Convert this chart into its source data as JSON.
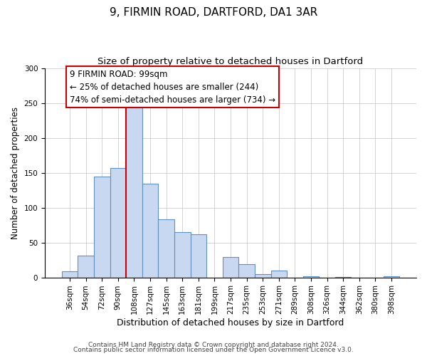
{
  "title": "9, FIRMIN ROAD, DARTFORD, DA1 3AR",
  "subtitle": "Size of property relative to detached houses in Dartford",
  "xlabel": "Distribution of detached houses by size in Dartford",
  "ylabel": "Number of detached properties",
  "categories": [
    "36sqm",
    "54sqm",
    "72sqm",
    "90sqm",
    "108sqm",
    "127sqm",
    "145sqm",
    "163sqm",
    "181sqm",
    "199sqm",
    "217sqm",
    "235sqm",
    "253sqm",
    "271sqm",
    "289sqm",
    "308sqm",
    "326sqm",
    "344sqm",
    "362sqm",
    "380sqm",
    "398sqm"
  ],
  "values": [
    9,
    31,
    144,
    157,
    243,
    134,
    83,
    65,
    62,
    0,
    29,
    19,
    5,
    10,
    0,
    2,
    0,
    1,
    0,
    0,
    2
  ],
  "bar_color": "#c8d8f0",
  "bar_edge_color": "#6090c0",
  "vline_x_index": 4,
  "vline_color": "#cc0000",
  "annotation_line1": "9 FIRMIN ROAD: 99sqm",
  "annotation_line2": "← 25% of detached houses are smaller (244)",
  "annotation_line3": "74% of semi-detached houses are larger (734) →",
  "annotation_box_color": "#ffffff",
  "annotation_box_edge_color": "#cc0000",
  "ylim": [
    0,
    300
  ],
  "yticks": [
    0,
    50,
    100,
    150,
    200,
    250,
    300
  ],
  "footer1": "Contains HM Land Registry data © Crown copyright and database right 2024.",
  "footer2": "Contains public sector information licensed under the Open Government Licence v3.0.",
  "title_fontsize": 11,
  "subtitle_fontsize": 9.5,
  "xlabel_fontsize": 9,
  "ylabel_fontsize": 8.5,
  "tick_fontsize": 7.5,
  "annotation_fontsize": 8.5,
  "footer_fontsize": 6.5
}
